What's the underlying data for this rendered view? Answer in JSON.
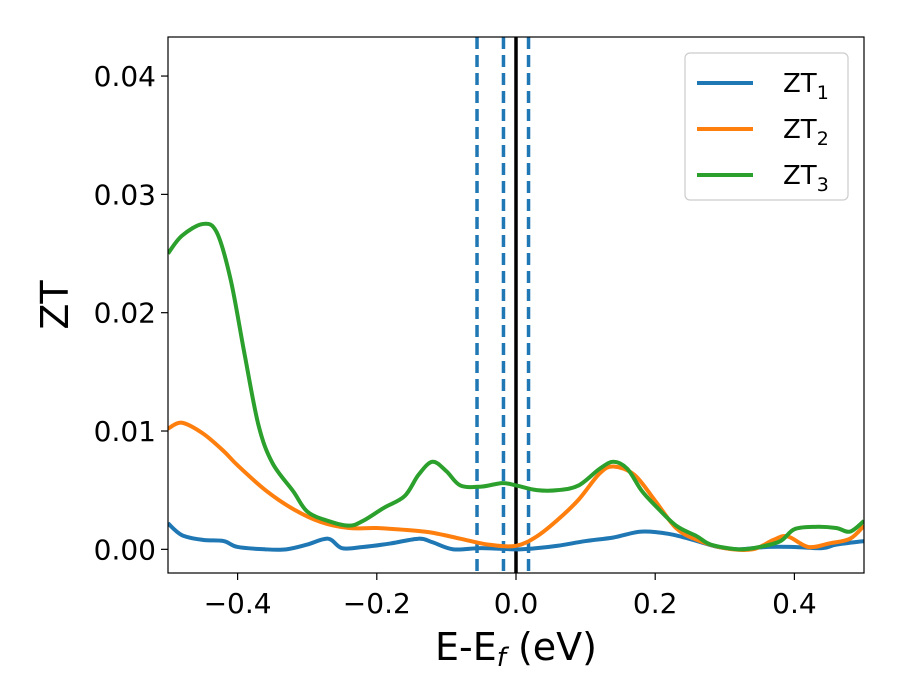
{
  "chart_data": {
    "type": "line",
    "title": "",
    "xlabel": "E-E_f (eV)",
    "ylabel": "ZT",
    "xlim": [
      -0.5,
      0.5
    ],
    "ylim": [
      -0.002,
      0.0433
    ],
    "grid": false,
    "legend_position": "top-right",
    "x_ticks": [
      -0.4,
      -0.2,
      0.0,
      0.2,
      0.4
    ],
    "x_tick_labels": [
      "−0.4",
      "−0.2",
      "0.0",
      "0.2",
      "0.4"
    ],
    "y_ticks": [
      0.0,
      0.01,
      0.02,
      0.03,
      0.04
    ],
    "y_tick_labels": [
      "0.00",
      "0.01",
      "0.02",
      "0.03",
      "0.04"
    ],
    "vertical_lines": [
      {
        "x": -0.056,
        "style": "dashed",
        "color": "#1f77b4"
      },
      {
        "x": -0.018,
        "style": "dashed",
        "color": "#1f77b4"
      },
      {
        "x": 0.0,
        "style": "solid",
        "color": "#000000"
      },
      {
        "x": 0.018,
        "style": "dashed",
        "color": "#1f77b4"
      }
    ],
    "series": [
      {
        "name": "ZT",
        "subscript": "1",
        "color": "#1f77b4",
        "points": [
          [
            -0.5,
            0.0022
          ],
          [
            -0.48,
            0.0012
          ],
          [
            -0.45,
            0.0008
          ],
          [
            -0.42,
            0.0007
          ],
          [
            -0.4,
            0.0002
          ],
          [
            -0.36,
            0.0
          ],
          [
            -0.33,
            0.0
          ],
          [
            -0.3,
            0.0004
          ],
          [
            -0.27,
            0.0009
          ],
          [
            -0.25,
            0.0001
          ],
          [
            -0.22,
            0.0002
          ],
          [
            -0.18,
            0.0005
          ],
          [
            -0.14,
            0.0009
          ],
          [
            -0.12,
            0.0006
          ],
          [
            -0.09,
            0.0
          ],
          [
            -0.05,
            0.0001
          ],
          [
            0.0,
            0.0
          ],
          [
            0.03,
            0.0001
          ],
          [
            0.06,
            0.0003
          ],
          [
            0.1,
            0.0007
          ],
          [
            0.14,
            0.001
          ],
          [
            0.18,
            0.0015
          ],
          [
            0.22,
            0.0013
          ],
          [
            0.26,
            0.0007
          ],
          [
            0.29,
            0.0002
          ],
          [
            0.32,
            0.0
          ],
          [
            0.36,
            0.0002
          ],
          [
            0.4,
            0.0002
          ],
          [
            0.44,
            0.0001
          ],
          [
            0.46,
            0.0004
          ],
          [
            0.5,
            0.0007
          ]
        ]
      },
      {
        "name": "ZT",
        "subscript": "2",
        "color": "#ff7f0e",
        "points": [
          [
            -0.5,
            0.0102
          ],
          [
            -0.48,
            0.0107
          ],
          [
            -0.45,
            0.0098
          ],
          [
            -0.42,
            0.0083
          ],
          [
            -0.4,
            0.0071
          ],
          [
            -0.36,
            0.005
          ],
          [
            -0.32,
            0.0034
          ],
          [
            -0.28,
            0.0023
          ],
          [
            -0.24,
            0.0018
          ],
          [
            -0.2,
            0.0018
          ],
          [
            -0.15,
            0.0016
          ],
          [
            -0.12,
            0.0014
          ],
          [
            -0.08,
            0.0009
          ],
          [
            -0.04,
            0.0004
          ],
          [
            0.0,
            0.0003
          ],
          [
            0.03,
            0.0011
          ],
          [
            0.06,
            0.0025
          ],
          [
            0.09,
            0.0042
          ],
          [
            0.12,
            0.0064
          ],
          [
            0.14,
            0.007
          ],
          [
            0.17,
            0.0063
          ],
          [
            0.2,
            0.0041
          ],
          [
            0.23,
            0.0018
          ],
          [
            0.26,
            0.0008
          ],
          [
            0.3,
            0.0001
          ],
          [
            0.34,
            0.0
          ],
          [
            0.37,
            0.0008
          ],
          [
            0.39,
            0.0011
          ],
          [
            0.42,
            0.0002
          ],
          [
            0.45,
            0.0005
          ],
          [
            0.48,
            0.0009
          ],
          [
            0.5,
            0.002
          ]
        ]
      },
      {
        "name": "ZT",
        "subscript": "3",
        "color": "#2ca02c",
        "points": [
          [
            -0.5,
            0.025
          ],
          [
            -0.48,
            0.0265
          ],
          [
            -0.45,
            0.0275
          ],
          [
            -0.43,
            0.0268
          ],
          [
            -0.41,
            0.0228
          ],
          [
            -0.39,
            0.0165
          ],
          [
            -0.37,
            0.0105
          ],
          [
            -0.35,
            0.0073
          ],
          [
            -0.32,
            0.0049
          ],
          [
            -0.3,
            0.0032
          ],
          [
            -0.27,
            0.0024
          ],
          [
            -0.24,
            0.002
          ],
          [
            -0.22,
            0.0024
          ],
          [
            -0.19,
            0.0035
          ],
          [
            -0.16,
            0.0045
          ],
          [
            -0.14,
            0.0063
          ],
          [
            -0.12,
            0.0074
          ],
          [
            -0.1,
            0.0066
          ],
          [
            -0.08,
            0.0054
          ],
          [
            -0.05,
            0.0053
          ],
          [
            -0.02,
            0.0056
          ],
          [
            0.0,
            0.0054
          ],
          [
            0.03,
            0.005
          ],
          [
            0.06,
            0.005
          ],
          [
            0.09,
            0.0054
          ],
          [
            0.12,
            0.0068
          ],
          [
            0.14,
            0.0074
          ],
          [
            0.16,
            0.0068
          ],
          [
            0.18,
            0.005
          ],
          [
            0.2,
            0.0037
          ],
          [
            0.23,
            0.002
          ],
          [
            0.26,
            0.0011
          ],
          [
            0.28,
            0.0004
          ],
          [
            0.32,
            0.0
          ],
          [
            0.35,
            0.0002
          ],
          [
            0.38,
            0.0007
          ],
          [
            0.4,
            0.0017
          ],
          [
            0.43,
            0.0019
          ],
          [
            0.46,
            0.0018
          ],
          [
            0.48,
            0.0015
          ],
          [
            0.5,
            0.0024
          ]
        ]
      }
    ]
  }
}
